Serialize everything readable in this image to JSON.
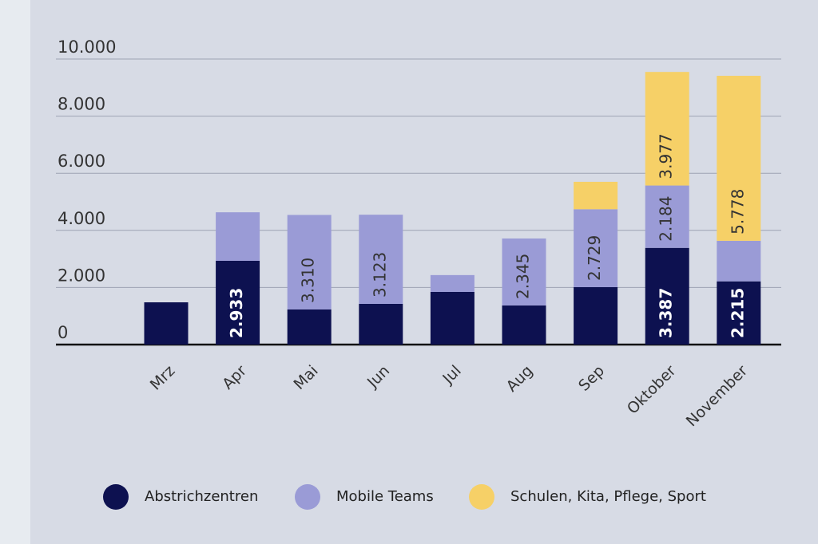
{
  "chart_data": {
    "type": "stacked_bar",
    "categories": [
      "Mrz",
      "Apr",
      "Mai",
      "Jun",
      "Jul",
      "Aug",
      "Sep",
      "Oktober",
      "November"
    ],
    "series": [
      {
        "name": "Abstrichzentren",
        "color": "#0d1150",
        "values": [
          1480,
          2933,
          1230,
          1425,
          1844,
          1370,
          2011,
          3387,
          2215
        ],
        "value_labels": [
          null,
          "2.933",
          null,
          null,
          null,
          null,
          null,
          "3.387",
          "2.215"
        ]
      },
      {
        "name": "Mobile Teams",
        "color": "#9a9bd6",
        "values": [
          null,
          1700,
          3310,
          3123,
          590,
          2345,
          2729,
          2184,
          1420
        ],
        "value_labels": [
          null,
          null,
          "3.310",
          "3.123",
          null,
          "2.345",
          "2.729",
          "2.184",
          null
        ]
      },
      {
        "name": "Schulen, Kita, Pflege, Sport",
        "color": "#f6d067",
        "values": [
          null,
          null,
          null,
          null,
          null,
          null,
          960,
          3977,
          5778
        ],
        "value_labels": [
          null,
          null,
          null,
          null,
          null,
          null,
          null,
          "3.977",
          "5.778"
        ]
      }
    ],
    "ylim": [
      0,
      10000
    ],
    "yticks": [
      0,
      {
        "value": 2000,
        "label": "2.000"
      },
      {
        "value": 4000,
        "label": "4.000"
      },
      {
        "value": 6000,
        "label": "6.000"
      },
      {
        "value": 8000,
        "label": "8.000"
      },
      {
        "value": 10000,
        "label": "10.000"
      }
    ],
    "grid": true
  }
}
